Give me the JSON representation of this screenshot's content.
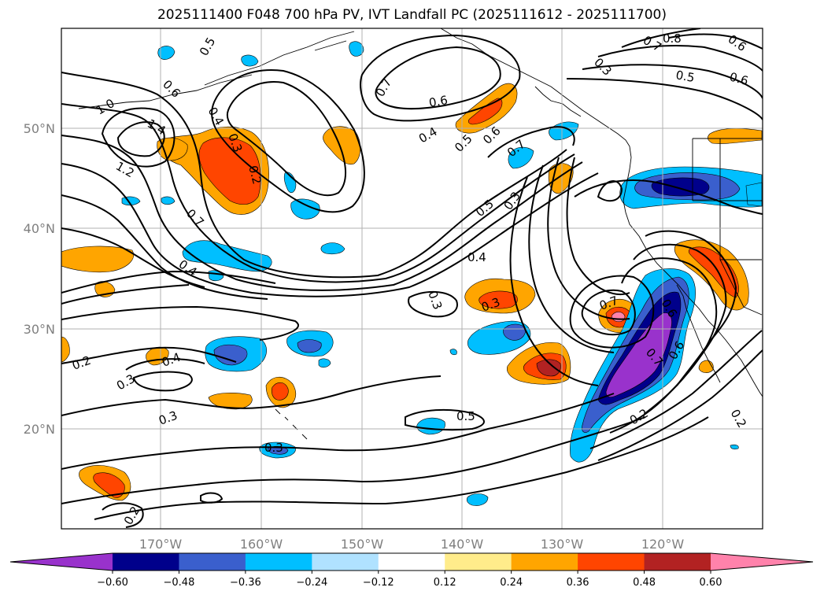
{
  "title": "2025111400 F048 700 hPa PV, IVT Landfall PC (2025111612 - 2025111700)",
  "longitude_labels": [
    "170°W",
    "160°W",
    "150°W",
    "140°W",
    "130°W",
    "120°W"
  ],
  "latitude_labels": [
    "50°N",
    "40°N",
    "30°N",
    "20°N"
  ],
  "colorbar": {
    "tick_labels": [
      "−0.60",
      "−0.48",
      "−0.36",
      "−0.24",
      "−0.12",
      "0.12",
      "0.24",
      "0.36",
      "0.48",
      "0.60"
    ],
    "colors": [
      "#9932cc",
      "#00008b",
      "#3a5fcd",
      "#00bfff",
      "#b0e2ff",
      "#ffffff",
      "#ffec8b",
      "#ffa500",
      "#ff4500",
      "#b22222",
      "#ff82ab"
    ]
  },
  "contour_labels": [
    "1.0",
    "1.4",
    "1.2",
    "0.6",
    "0.5",
    "0.4",
    "0.3",
    "0.2",
    "0.7",
    "0.4",
    "0.6",
    "0.5",
    "0.6",
    "0.7",
    "0.5",
    "0.3",
    "0.7",
    "0.3",
    "0.8",
    "0.6",
    "0.5",
    "0.6",
    "0.7",
    "0.4",
    "0.4",
    "0.3",
    "0.3",
    "0.2",
    "0.3",
    "0.4",
    "0.3",
    "0.3",
    "0.5",
    "0.2",
    "0.6",
    "0.7",
    "0.6",
    "0.7",
    "0.2",
    "0.2"
  ]
}
